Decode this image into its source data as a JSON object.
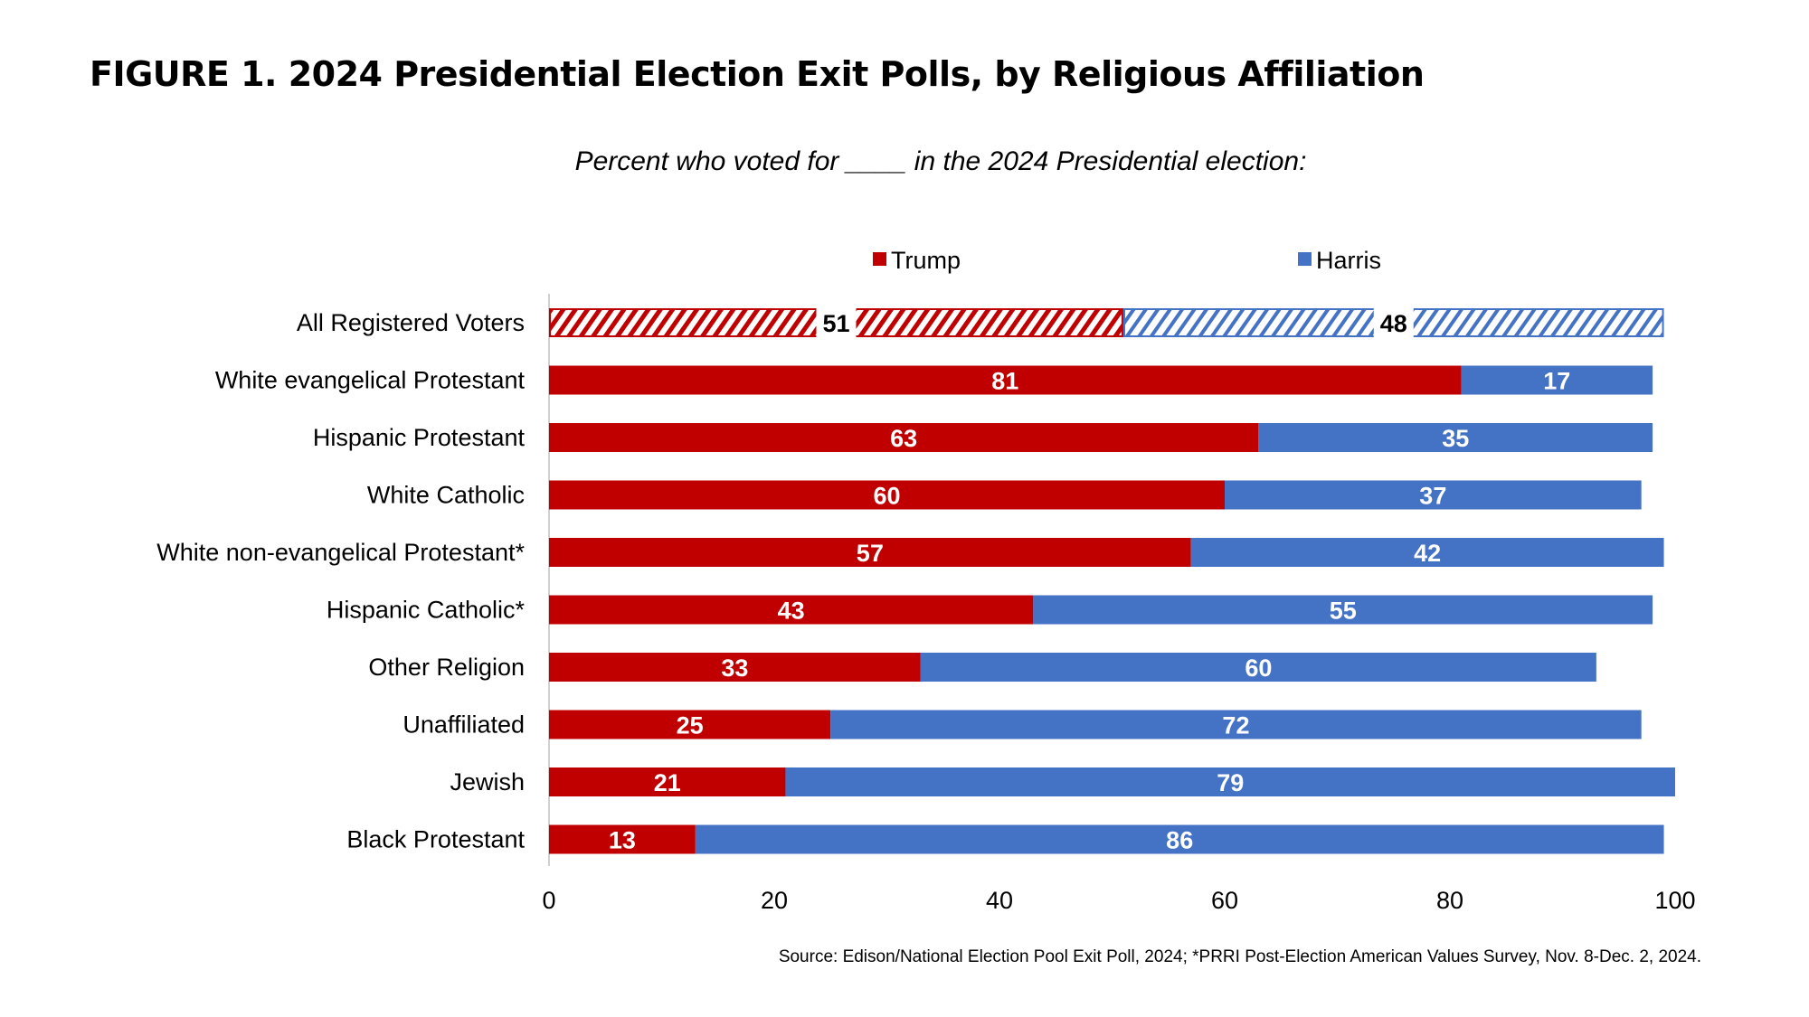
{
  "title": "FIGURE 1. 2024 Presidential Election Exit Polls, by Religious Affiliation",
  "source": "Source: Edison/National Election Pool Exit Poll, 2024; *PRRI Post-Election American Values Survey, Nov. 8-Dec. 2, 2024.",
  "chart_data": {
    "type": "bar",
    "orientation": "horizontal",
    "stacked": true,
    "title": "Percent who voted for ____ in the 2024 Presidential election:",
    "categories": [
      "All Registered Voters",
      "White evangelical Protestant",
      "Hispanic Protestant",
      "White Catholic",
      "White non-evangelical Protestant*",
      "Hispanic Catholic*",
      "Other Religion",
      "Unaffiliated",
      "Jewish",
      "Black Protestant"
    ],
    "series": [
      {
        "name": "Trump",
        "color": "#C00000",
        "values": [
          51,
          81,
          63,
          60,
          57,
          43,
          33,
          25,
          21,
          13
        ]
      },
      {
        "name": "Harris",
        "color": "#4472C4",
        "values": [
          48,
          17,
          35,
          37,
          42,
          55,
          60,
          72,
          79,
          86
        ]
      }
    ],
    "hatched_categories": [
      "All Registered Voters"
    ],
    "xlim": [
      0,
      100
    ],
    "xticks": [
      0,
      20,
      40,
      60,
      80,
      100
    ],
    "legend_position": "top",
    "grid": false
  }
}
